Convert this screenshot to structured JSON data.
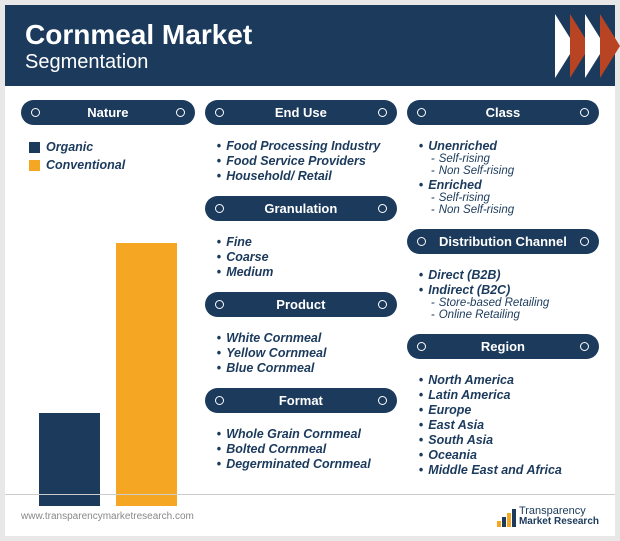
{
  "header": {
    "title1": "Cornmeal Market",
    "title2": "Segmentation"
  },
  "colors": {
    "header_bg": "#1b3a5c",
    "accent": "#b94424",
    "organic": "#1b3a5c",
    "conventional": "#f5a623",
    "text": "#1b3a5c"
  },
  "nature": {
    "header": "Nature",
    "legend": [
      {
        "label": "Organic",
        "color": "#1b3a5c"
      },
      {
        "label": "Conventional",
        "color": "#f5a623"
      }
    ],
    "bars": [
      {
        "color": "#1b3a5c",
        "height_pct": 30
      },
      {
        "color": "#f5a623",
        "height_pct": 85
      }
    ]
  },
  "col2": [
    {
      "header": "End Use",
      "items": [
        {
          "t": "Food Processing Industry"
        },
        {
          "t": "Food Service Providers"
        },
        {
          "t": "Household/ Retail"
        }
      ]
    },
    {
      "header": "Granulation",
      "items": [
        {
          "t": "Fine"
        },
        {
          "t": "Coarse"
        },
        {
          "t": "Medium"
        }
      ]
    },
    {
      "header": "Product",
      "items": [
        {
          "t": "White Cornmeal"
        },
        {
          "t": "Yellow Cornmeal"
        },
        {
          "t": "Blue Cornmeal"
        }
      ]
    },
    {
      "header": "Format",
      "items": [
        {
          "t": "Whole Grain Cornmeal"
        },
        {
          "t": "Bolted Cornmeal"
        },
        {
          "t": "Degerminated Cornmeal"
        }
      ]
    }
  ],
  "col3": [
    {
      "header": "Class",
      "items": [
        {
          "t": "Unenriched",
          "sub": [
            "Self-rising",
            "Non Self-rising"
          ]
        },
        {
          "t": "Enriched",
          "sub": [
            "Self-rising",
            "Non Self-rising"
          ]
        }
      ]
    },
    {
      "header": "Distribution Channel",
      "items": [
        {
          "t": "Direct (B2B)"
        },
        {
          "t": "Indirect (B2C)",
          "sub": [
            "Store-based Retailing",
            "Online Retailing"
          ]
        }
      ]
    },
    {
      "header": "Region",
      "items": [
        {
          "t": "North America"
        },
        {
          "t": "Latin America"
        },
        {
          "t": "Europe"
        },
        {
          "t": "East Asia"
        },
        {
          "t": "South Asia"
        },
        {
          "t": "Oceania"
        },
        {
          "t": "Middle East and Africa"
        }
      ]
    }
  ],
  "footer": {
    "url": "www.transparencymarketresearch.com",
    "logo": {
      "t1": "Transparency",
      "t2": "Market Research",
      "bars": [
        {
          "h": 6,
          "c": "#f5a623"
        },
        {
          "h": 10,
          "c": "#1b3a5c"
        },
        {
          "h": 14,
          "c": "#f5a623"
        },
        {
          "h": 18,
          "c": "#1b3a5c"
        }
      ]
    }
  }
}
